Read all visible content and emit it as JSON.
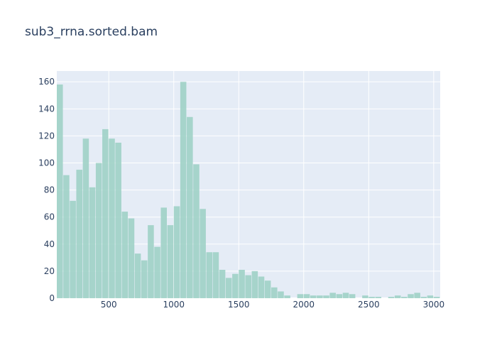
{
  "chart_data": {
    "type": "bar",
    "title": "sub3_rrna.sorted.bam",
    "bin_width": 50,
    "x_range": [
      100,
      3050
    ],
    "ylim": [
      0,
      168
    ],
    "x_ticks": [
      500,
      1000,
      1500,
      2000,
      2500,
      3000
    ],
    "y_ticks": [
      0,
      20,
      40,
      60,
      80,
      100,
      120,
      140,
      160
    ],
    "bins": [
      {
        "x": 100,
        "y": 158
      },
      {
        "x": 150,
        "y": 91
      },
      {
        "x": 200,
        "y": 72
      },
      {
        "x": 250,
        "y": 95
      },
      {
        "x": 300,
        "y": 118
      },
      {
        "x": 350,
        "y": 82
      },
      {
        "x": 400,
        "y": 100
      },
      {
        "x": 450,
        "y": 125
      },
      {
        "x": 500,
        "y": 118
      },
      {
        "x": 550,
        "y": 115
      },
      {
        "x": 600,
        "y": 64
      },
      {
        "x": 650,
        "y": 59
      },
      {
        "x": 700,
        "y": 33
      },
      {
        "x": 750,
        "y": 28
      },
      {
        "x": 800,
        "y": 54
      },
      {
        "x": 850,
        "y": 38
      },
      {
        "x": 900,
        "y": 67
      },
      {
        "x": 950,
        "y": 54
      },
      {
        "x": 1000,
        "y": 68
      },
      {
        "x": 1050,
        "y": 160
      },
      {
        "x": 1100,
        "y": 134
      },
      {
        "x": 1150,
        "y": 99
      },
      {
        "x": 1200,
        "y": 66
      },
      {
        "x": 1250,
        "y": 34
      },
      {
        "x": 1300,
        "y": 34
      },
      {
        "x": 1350,
        "y": 21
      },
      {
        "x": 1400,
        "y": 15
      },
      {
        "x": 1450,
        "y": 18
      },
      {
        "x": 1500,
        "y": 21
      },
      {
        "x": 1550,
        "y": 17
      },
      {
        "x": 1600,
        "y": 20
      },
      {
        "x": 1650,
        "y": 16
      },
      {
        "x": 1700,
        "y": 13
      },
      {
        "x": 1750,
        "y": 8
      },
      {
        "x": 1800,
        "y": 5
      },
      {
        "x": 1850,
        "y": 2
      },
      {
        "x": 1950,
        "y": 3
      },
      {
        "x": 2000,
        "y": 3
      },
      {
        "x": 2050,
        "y": 2
      },
      {
        "x": 2100,
        "y": 2
      },
      {
        "x": 2150,
        "y": 2
      },
      {
        "x": 2200,
        "y": 4
      },
      {
        "x": 2250,
        "y": 3
      },
      {
        "x": 2300,
        "y": 4
      },
      {
        "x": 2350,
        "y": 3
      },
      {
        "x": 2450,
        "y": 2
      },
      {
        "x": 2500,
        "y": 1
      },
      {
        "x": 2550,
        "y": 1
      },
      {
        "x": 2650,
        "y": 1
      },
      {
        "x": 2700,
        "y": 2
      },
      {
        "x": 2750,
        "y": 1
      },
      {
        "x": 2800,
        "y": 3
      },
      {
        "x": 2850,
        "y": 4
      },
      {
        "x": 2900,
        "y": 1
      },
      {
        "x": 2950,
        "y": 2
      },
      {
        "x": 3000,
        "y": 1
      }
    ],
    "grid": true,
    "colors": {
      "bar": "#9fd2c7",
      "plot_background": "#e5ecf6",
      "grid": "#ffffff",
      "text": "#2a3f5f"
    }
  }
}
